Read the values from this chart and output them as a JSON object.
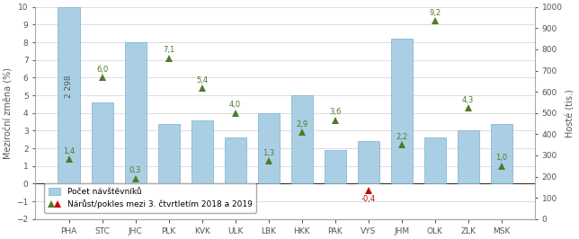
{
  "categories": [
    "PHA",
    "STC",
    "JHC",
    "PLK",
    "KVK",
    "ULK",
    "LBK",
    "HKK",
    "PAK",
    "VYS",
    "JHM",
    "OLK",
    "ZLK",
    "MSK"
  ],
  "bar_values": [
    10.0,
    4.6,
    8.0,
    3.4,
    3.6,
    2.6,
    4.0,
    5.0,
    1.9,
    2.4,
    8.2,
    2.6,
    3.0,
    3.4
  ],
  "triangle_values": [
    1.4,
    6.0,
    0.3,
    7.1,
    5.4,
    4.0,
    1.3,
    2.9,
    3.6,
    -0.4,
    2.2,
    9.2,
    4.3,
    1.0
  ],
  "triangle_colors": [
    "#4d7a29",
    "#4d7a29",
    "#4d7a29",
    "#4d7a29",
    "#4d7a29",
    "#4d7a29",
    "#4d7a29",
    "#4d7a29",
    "#4d7a29",
    "#cc0000",
    "#4d7a29",
    "#4d7a29",
    "#4d7a29",
    "#4d7a29"
  ],
  "bar_color": "#aacfe4",
  "bar_edge_color": "#7aafcf",
  "ylim_left": [
    -2,
    10
  ],
  "ylim_right": [
    0,
    1000
  ],
  "yticks_left": [
    -2,
    -1,
    0,
    1,
    2,
    3,
    4,
    5,
    6,
    7,
    8,
    9,
    10
  ],
  "yticks_right": [
    0,
    100,
    200,
    300,
    400,
    500,
    600,
    700,
    800,
    900,
    1000
  ],
  "ylabel_left": "Meziroční změna (%)",
  "ylabel_right": "Hosté (tis.)",
  "legend_bar": "Počet návštěvníků",
  "legend_triangle": "Nárůst/pokles mezi 3. čtvrtletím 2018 a 2019",
  "background_color": "#ffffff",
  "grid_color": "#d0d0d0",
  "pha_label": "2 298",
  "triangle_label_above": [
    true,
    true,
    true,
    true,
    true,
    true,
    true,
    true,
    true,
    false,
    true,
    true,
    true,
    true
  ]
}
